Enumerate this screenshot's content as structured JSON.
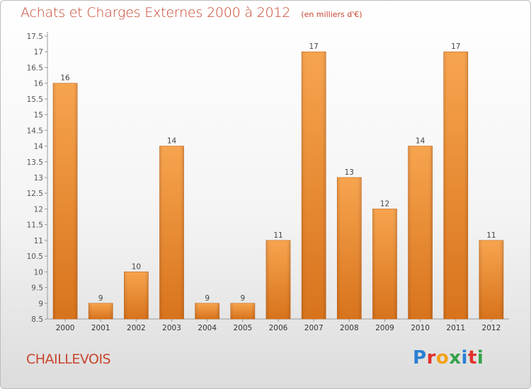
{
  "header": {
    "title": "Achats et Charges Externes 2000 à 2012",
    "subtitle": "(en milliers d'€)"
  },
  "footer": {
    "commune": "CHAILLEVOIS",
    "brand": "Proxiti",
    "brand_colors": [
      "#2a7fd4",
      "#e0312b",
      "#f2a115",
      "#35a24a",
      "#2a7fd4",
      "#e0312b",
      "#35a24a"
    ]
  },
  "colors": {
    "bar_top": "#f7a44f",
    "bar_bottom": "#d8731c",
    "axis": "#9a9a9a",
    "title": "#c8452e"
  },
  "chart_data": {
    "type": "bar",
    "title": "Achats et Charges Externes 2000 à 2012",
    "subtitle": "(en milliers d'€)",
    "categories": [
      "2000",
      "2001",
      "2002",
      "2003",
      "2004",
      "2005",
      "2006",
      "2007",
      "2008",
      "2009",
      "2010",
      "2011",
      "2012"
    ],
    "values": [
      16,
      9,
      10,
      14,
      9,
      9,
      11,
      17,
      13,
      12,
      14,
      17,
      11
    ],
    "ylim": [
      8.5,
      17.5
    ],
    "yticks": [
      "8.5",
      "9",
      "9.5",
      "10",
      "10.5",
      "11",
      "11.5",
      "12",
      "12.5",
      "13",
      "13.5",
      "14",
      "14.5",
      "15",
      "15.5",
      "16",
      "16.5",
      "17",
      "17.5"
    ],
    "grid": false,
    "legend": "none"
  }
}
